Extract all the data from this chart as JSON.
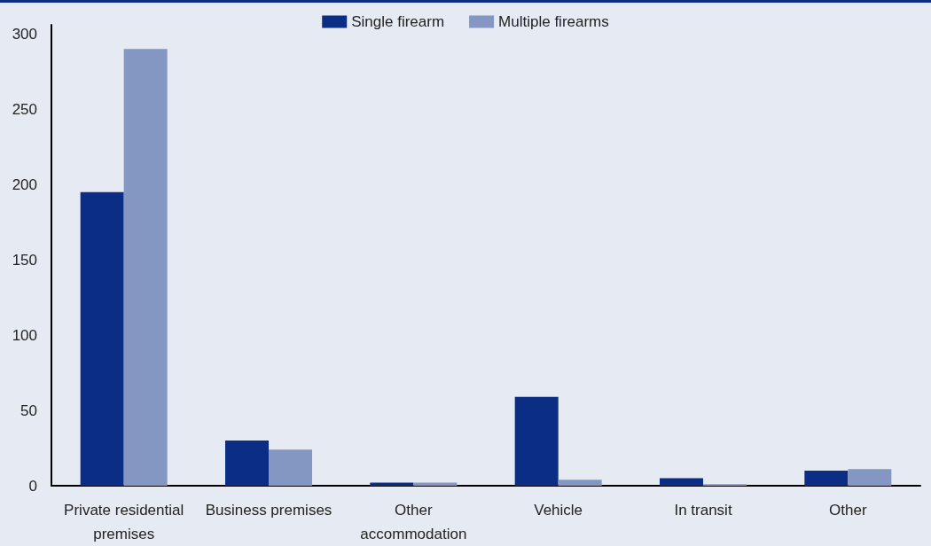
{
  "chart_data": {
    "type": "bar",
    "categories": [
      "Private residential\npremises",
      "Business premises",
      "Other\naccommodation",
      "Vehicle",
      "In transit",
      "Other"
    ],
    "series": [
      {
        "name": "Single firearm",
        "color": "#0b2d84",
        "values": [
          195,
          30,
          2,
          59,
          5,
          10
        ]
      },
      {
        "name": "Multiple firearms",
        "color": "#8497c2",
        "values": [
          290,
          24,
          2,
          4,
          1,
          11
        ]
      }
    ],
    "ylim": [
      0,
      306
    ],
    "yticks": [
      0,
      50,
      100,
      150,
      200,
      250,
      300
    ],
    "grid": false,
    "legend": "top"
  }
}
